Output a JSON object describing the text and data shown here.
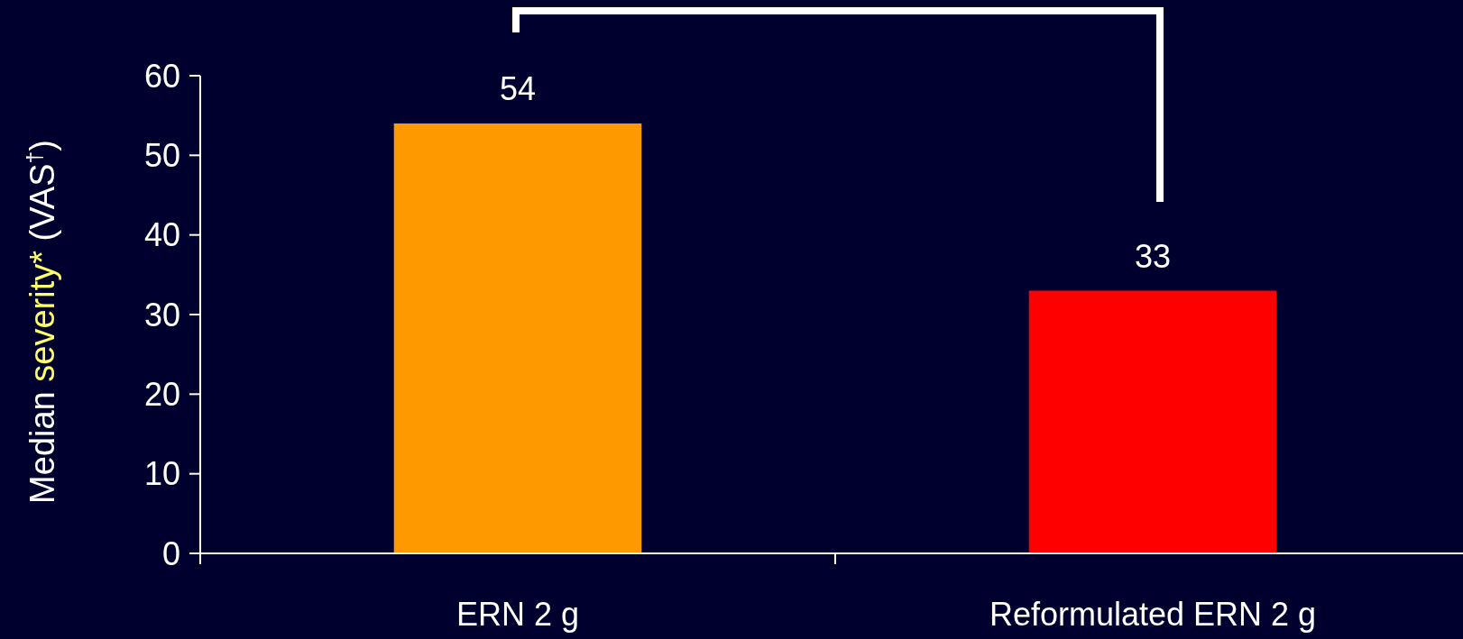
{
  "chart_data": {
    "type": "bar",
    "ylabel": "Median severity* (VAS$^{†}$)",
    "categories": [
      "ERN 2 g",
      "Reformulated ERN 2 g"
    ],
    "values": [
      54,
      33
    ],
    "colors": [
      "#ff9900",
      "#ff0000"
    ],
    "ylim": [
      0,
      60
    ],
    "yticks": [
      0,
      10,
      20,
      30,
      40,
      50,
      60
    ],
    "data_labels": true
  }
}
